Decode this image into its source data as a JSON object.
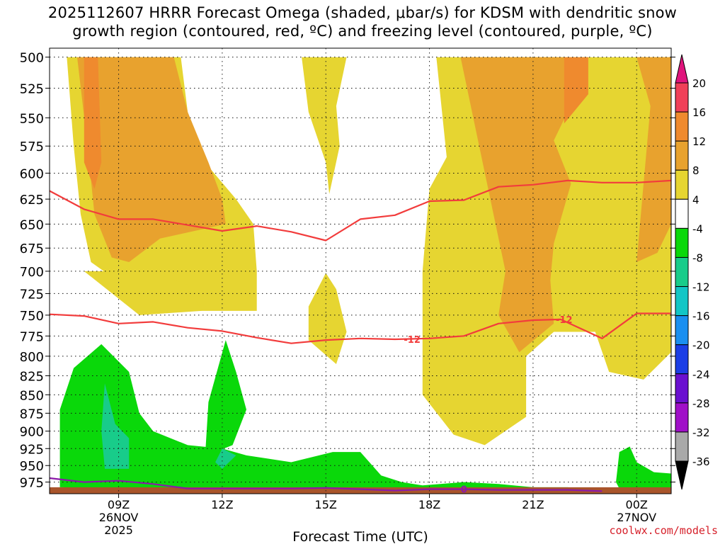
{
  "chart_data": {
    "type": "heatmap",
    "title_lines": [
      "2025112607 HRRR Forecast Omega (shaded, μbar/s) for KDSM with dendritic snow",
      "growth region (contoured, red, ºC) and freezing level (contoured, purple, ºC)"
    ],
    "xlabel": "Forecast Time (UTC)",
    "ylabel": "",
    "x_ticks": [
      {
        "hour": 9,
        "lines": [
          "09Z",
          "26NOV",
          "2025"
        ]
      },
      {
        "hour": 12,
        "lines": [
          "12Z"
        ]
      },
      {
        "hour": 15,
        "lines": [
          "15Z"
        ]
      },
      {
        "hour": 18,
        "lines": [
          "18Z"
        ]
      },
      {
        "hour": 21,
        "lines": [
          "21Z"
        ]
      },
      {
        "hour": 24,
        "lines": [
          "00Z",
          "27NOV"
        ]
      }
    ],
    "x_range_hours": [
      7,
      25
    ],
    "y_ticks": [
      500,
      525,
      550,
      575,
      600,
      625,
      650,
      675,
      700,
      725,
      750,
      775,
      800,
      825,
      850,
      875,
      900,
      925,
      950,
      975
    ],
    "y_range_hpa": [
      493,
      993
    ],
    "y_scale": "log-pressure, inverted",
    "grid": true,
    "colorbar": {
      "ticks": [
        20,
        16,
        12,
        8,
        4,
        -4,
        -8,
        -12,
        -16,
        -20,
        -24,
        -28,
        -32,
        -36
      ],
      "bins": [
        {
          "from": 16,
          "to": 20,
          "color": "#f04058"
        },
        {
          "from": 12,
          "to": 16,
          "color": "#ef8a2e"
        },
        {
          "from": 8,
          "to": 12,
          "color": "#e8a22e"
        },
        {
          "from": 4,
          "to": 8,
          "color": "#e6d531"
        },
        {
          "from": -4,
          "to": 4,
          "color": "#ffffff"
        },
        {
          "from": -8,
          "to": -4,
          "color": "#0ad80a"
        },
        {
          "from": -12,
          "to": -8,
          "color": "#18cc8a"
        },
        {
          "from": -16,
          "to": -12,
          "color": "#12c6c6"
        },
        {
          "from": -20,
          "to": -16,
          "color": "#1a8ff0"
        },
        {
          "from": -24,
          "to": -20,
          "color": "#1b3ee6"
        },
        {
          "from": -28,
          "to": -24,
          "color": "#6a10d0"
        },
        {
          "from": -32,
          "to": -28,
          "color": "#a010c8"
        },
        {
          "from": -36,
          "to": -32,
          "color": "#a9a9a9"
        }
      ],
      "top_arrow_color": "#e0147c",
      "bottom_arrow_color": "#000000"
    },
    "shaded_regions": [
      {
        "range": "4 to 8",
        "color": "#e6d531",
        "points": [
          [
            7.3,
            500
          ],
          [
            10.8,
            500
          ],
          [
            11.0,
            545
          ],
          [
            11.5,
            590
          ],
          [
            12.4,
            625
          ],
          [
            12.9,
            650
          ],
          [
            13.0,
            700
          ],
          [
            13.0,
            745
          ],
          [
            10.3,
            745
          ],
          [
            9.3,
            720
          ],
          [
            8.2,
            690
          ],
          [
            7.9,
            640
          ],
          [
            7.7,
            575
          ],
          [
            7.5,
            500
          ]
        ]
      },
      {
        "range": "4 to 8",
        "color": "#e6d531",
        "points": [
          [
            8.0,
            700
          ],
          [
            9.6,
            750
          ],
          [
            11.4,
            745
          ],
          [
            11.0,
            715
          ],
          [
            9.9,
            700
          ]
        ]
      },
      {
        "range": "4 to 8",
        "color": "#e6d531",
        "points": [
          [
            13.8,
            500
          ],
          [
            15.6,
            500
          ],
          [
            15.3,
            540
          ],
          [
            15.4,
            575
          ],
          [
            15.1,
            620
          ],
          [
            15.0,
            590
          ],
          [
            14.5,
            545
          ],
          [
            14.3,
            500
          ]
        ]
      },
      {
        "range": "4 to 8",
        "color": "#e6d531",
        "points": [
          [
            15.0,
            702
          ],
          [
            15.3,
            720
          ],
          [
            15.6,
            770
          ],
          [
            15.3,
            810
          ],
          [
            14.5,
            780
          ],
          [
            14.5,
            740
          ]
        ]
      },
      {
        "range": "4 to 8",
        "color": "#e6d531",
        "points": [
          [
            18.0,
            500
          ],
          [
            25.0,
            500
          ],
          [
            25.0,
            795
          ],
          [
            24.2,
            830
          ],
          [
            23.2,
            820
          ],
          [
            22.8,
            770
          ],
          [
            21.6,
            770
          ],
          [
            20.8,
            800
          ],
          [
            20.8,
            880
          ],
          [
            19.6,
            920
          ],
          [
            18.7,
            905
          ],
          [
            17.8,
            850
          ],
          [
            17.8,
            700
          ],
          [
            18.0,
            615
          ],
          [
            18.5,
            585
          ],
          [
            18.2,
            500
          ]
        ]
      },
      {
        "range": "8 to 12",
        "color": "#e8a22e",
        "points": [
          [
            7.8,
            500
          ],
          [
            10.6,
            500
          ],
          [
            11.0,
            545
          ],
          [
            11.6,
            590
          ],
          [
            12.0,
            625
          ],
          [
            12.1,
            650
          ],
          [
            10.2,
            665
          ],
          [
            9.3,
            690
          ],
          [
            8.8,
            685
          ],
          [
            8.3,
            640
          ],
          [
            8.1,
            575
          ]
        ]
      },
      {
        "range": "8 to 12",
        "color": "#e8a22e",
        "points": [
          [
            18.9,
            500
          ],
          [
            25.0,
            500
          ],
          [
            25.0,
            650
          ],
          [
            24.6,
            680
          ],
          [
            24.0,
            690
          ],
          [
            24.4,
            540
          ],
          [
            24.0,
            500
          ],
          [
            21.9,
            500
          ],
          [
            22.0,
            545
          ],
          [
            21.6,
            570
          ],
          [
            22.1,
            610
          ],
          [
            21.6,
            670
          ],
          [
            21.5,
            710
          ],
          [
            21.6,
            760
          ],
          [
            20.6,
            795
          ],
          [
            20.0,
            750
          ],
          [
            20.2,
            700
          ]
        ]
      },
      {
        "range": "12 to 16",
        "color": "#ef8a2e",
        "points": [
          [
            8.0,
            500
          ],
          [
            8.4,
            500
          ],
          [
            8.5,
            590
          ],
          [
            8.3,
            615
          ],
          [
            8.0,
            590
          ]
        ]
      },
      {
        "range": "12 to 16",
        "color": "#ef8a2e",
        "points": [
          [
            21.9,
            500
          ],
          [
            22.6,
            500
          ],
          [
            22.6,
            530
          ],
          [
            21.9,
            555
          ]
        ]
      },
      {
        "range": "-8 to -4",
        "color": "#0ad80a",
        "points": [
          [
            7.3,
            983
          ],
          [
            7.3,
            870
          ],
          [
            7.7,
            815
          ],
          [
            8.5,
            785
          ],
          [
            9.3,
            820
          ],
          [
            9.6,
            875
          ],
          [
            10.0,
            900
          ],
          [
            11.0,
            920
          ],
          [
            12.0,
            925
          ],
          [
            12.7,
            935
          ],
          [
            14.0,
            945
          ],
          [
            15.2,
            930
          ],
          [
            16.0,
            930
          ],
          [
            16.6,
            965
          ],
          [
            17.2,
            975
          ],
          [
            17.8,
            980
          ],
          [
            19.0,
            975
          ],
          [
            20.0,
            978
          ],
          [
            21.0,
            983
          ],
          [
            22.0,
            983
          ],
          [
            22.4,
            985
          ],
          [
            18.5,
            987
          ],
          [
            13.5,
            986
          ],
          [
            8.5,
            984
          ]
        ]
      },
      {
        "range": "-8 to -4",
        "color": "#0ad80a",
        "points": [
          [
            11.5,
            940
          ],
          [
            11.6,
            860
          ],
          [
            12.1,
            780
          ],
          [
            12.4,
            820
          ],
          [
            12.7,
            870
          ],
          [
            12.3,
            920
          ],
          [
            11.8,
            930
          ]
        ]
      },
      {
        "range": "-8 to -4",
        "color": "#0ad80a",
        "points": [
          [
            23.4,
            975
          ],
          [
            23.5,
            930
          ],
          [
            23.8,
            922
          ],
          [
            24.0,
            945
          ],
          [
            24.5,
            960
          ],
          [
            25.0,
            962
          ],
          [
            25.0,
            985
          ],
          [
            23.5,
            985
          ]
        ]
      },
      {
        "range": "-12 to -8",
        "color": "#18cc8a",
        "points": [
          [
            8.6,
            835
          ],
          [
            8.9,
            890
          ],
          [
            9.3,
            910
          ],
          [
            9.3,
            955
          ],
          [
            8.6,
            955
          ],
          [
            8.5,
            900
          ]
        ]
      },
      {
        "range": "-12 to -8",
        "color": "#18cc8a",
        "points": [
          [
            12.0,
            925
          ],
          [
            12.4,
            935
          ],
          [
            12.0,
            955
          ],
          [
            11.8,
            945
          ]
        ]
      }
    ],
    "ground": {
      "color": "#a9552b",
      "top_hpa": 983
    },
    "contours": [
      {
        "name": "dendritic -12 upper",
        "value": "",
        "color": "#f23c3c",
        "points": [
          [
            7,
            617
          ],
          [
            8,
            635
          ],
          [
            9,
            645
          ],
          [
            10,
            645
          ],
          [
            11,
            651
          ],
          [
            12,
            657
          ],
          [
            13,
            652
          ],
          [
            14,
            658
          ],
          [
            15,
            667
          ],
          [
            16,
            645
          ],
          [
            17,
            641
          ],
          [
            18,
            627
          ],
          [
            19,
            626
          ],
          [
            20,
            613
          ],
          [
            21,
            611
          ],
          [
            22,
            607
          ],
          [
            23,
            609
          ],
          [
            24,
            609
          ],
          [
            25,
            607
          ]
        ]
      },
      {
        "name": "dendritic -12 lower",
        "value": "-12",
        "color": "#f23c3c",
        "points": [
          [
            7,
            749
          ],
          [
            8,
            751
          ],
          [
            9,
            760
          ],
          [
            10,
            758
          ],
          [
            11,
            765
          ],
          [
            12,
            769
          ],
          [
            13,
            777
          ],
          [
            14,
            784
          ],
          [
            15,
            780
          ],
          [
            16,
            778
          ],
          [
            17,
            779
          ],
          [
            18,
            778
          ],
          [
            19,
            775
          ],
          [
            20,
            760
          ],
          [
            21,
            756
          ],
          [
            21.8,
            755
          ],
          [
            23,
            778
          ],
          [
            24,
            748
          ],
          [
            25,
            748
          ]
        ]
      },
      {
        "name": "freezing level 0",
        "value": "0",
        "color": "#8a1aa8",
        "points": [
          [
            7,
            969
          ],
          [
            8,
            975
          ],
          [
            9,
            973
          ],
          [
            10,
            978
          ],
          [
            11,
            985
          ],
          [
            12,
            985
          ],
          [
            13,
            985
          ],
          [
            14,
            985
          ],
          [
            15,
            984
          ],
          [
            16,
            986
          ],
          [
            17,
            988
          ],
          [
            18,
            986
          ],
          [
            19,
            986
          ],
          [
            20,
            987
          ],
          [
            21,
            987
          ],
          [
            22,
            987
          ],
          [
            23,
            989
          ]
        ]
      }
    ],
    "contour_labels": [
      {
        "text": "-12",
        "hour": 17.5,
        "hpa": 779,
        "color": "#f23c3c"
      },
      {
        "text": "-12",
        "hour": 21.9,
        "hpa": 755,
        "color": "#f23c3c"
      },
      {
        "text": "0",
        "hour": 19.0,
        "hpa": 986,
        "color": "#8a1aa8"
      }
    ]
  },
  "credit": "coolwx.com/models"
}
